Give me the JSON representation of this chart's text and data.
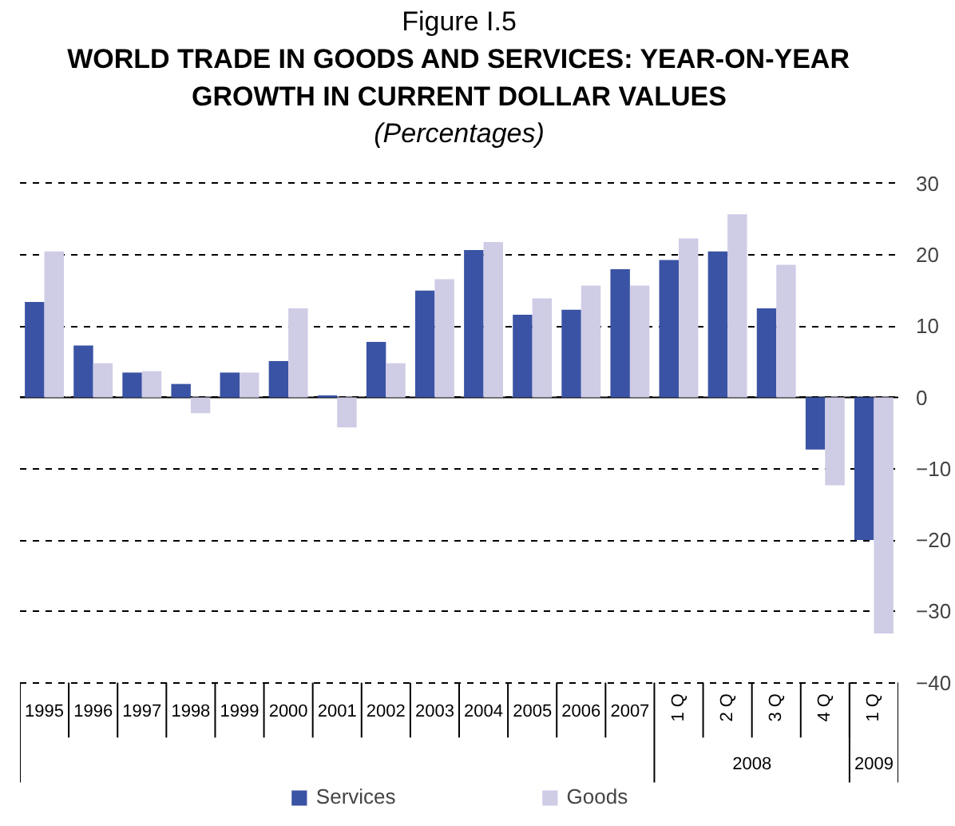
{
  "chart_data": {
    "type": "bar",
    "title": "WORLD TRADE IN GOODS AND SERVICES: YEAR-ON-YEAR GROWTH IN CURRENT DOLLAR VALUES",
    "subtitle": "(Percentages)",
    "annotations": [
      "Figure I.5",
      "2008",
      "2009"
    ],
    "categories": [
      "1995",
      "1996",
      "1997",
      "1998",
      "1999",
      "2000",
      "2001",
      "2002",
      "2003",
      "2004",
      "2005",
      "2006",
      "2007",
      "1 Q",
      "2 Q",
      "3 Q",
      "4 Q",
      "1 Q"
    ],
    "series": [
      {
        "name": "Services",
        "color": "#3a53a4",
        "values": [
          13.4,
          7.3,
          3.5,
          1.9,
          3.5,
          5.1,
          0.3,
          7.8,
          15.0,
          20.7,
          11.6,
          12.3,
          18.0,
          19.3,
          20.5,
          12.5,
          -7.3,
          -20.0
        ]
      },
      {
        "name": "Goods",
        "color": "#cfcce6",
        "values": [
          20.5,
          4.8,
          3.7,
          -2.2,
          3.5,
          12.5,
          -4.2,
          4.8,
          16.6,
          21.8,
          13.9,
          15.7,
          15.7,
          22.3,
          25.7,
          18.6,
          -12.3,
          -33.1
        ]
      }
    ],
    "ylim": [
      -40,
      30
    ],
    "yticks": [
      -40,
      -30,
      -20,
      -10,
      0,
      10,
      20,
      30
    ],
    "grid": "y",
    "legend": "bottom"
  }
}
